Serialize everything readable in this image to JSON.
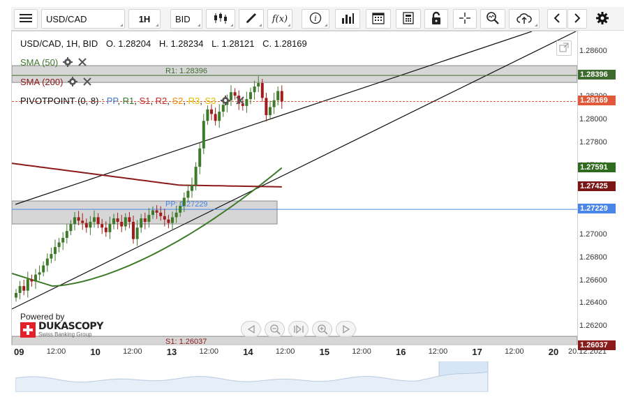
{
  "toolbar": {
    "symbol": "USD/CAD",
    "period": "1H",
    "side": "BID",
    "fx_label": "f(x)",
    "icons": [
      "menu-icon",
      "candlestick-icon",
      "pencil-icon",
      "function-icon",
      "info-icon",
      "bar-chart-icon",
      "calendar-icon",
      "calculator-icon",
      "lock-icon",
      "crosshair-icon",
      "zoom-icon",
      "upload-icon",
      "chevron-left-icon",
      "chevron-right-icon",
      "gear-icon"
    ]
  },
  "header": {
    "title": "USD/CAD, 1H, BID",
    "open": "O. 1.28204",
    "high": "H. 1.28234",
    "low": "L. 1.28121",
    "close": "C. 1.28169"
  },
  "indicators": {
    "sma50": "SMA (50)",
    "sma200": "SMA (200)",
    "pivot_name": "PIVOTPOINT (0, 8)",
    "pivot_parts": [
      {
        "text": "PP",
        "color": "#3a7bd5"
      },
      {
        "text": "R1",
        "color": "#2e7d32"
      },
      {
        "text": "S1",
        "color": "#c62828"
      },
      {
        "text": "R2",
        "color": "#c62828"
      },
      {
        "text": "S2",
        "color": "#ef8f00"
      },
      {
        "text": "R3",
        "color": "#e0c000"
      },
      {
        "text": "S3",
        "color": "#e0c000"
      }
    ]
  },
  "levels": {
    "r1": {
      "label": "R1: 1.28396",
      "value": 1.28396,
      "badge": "1.28396",
      "color": "#3d6b2d"
    },
    "pp": {
      "label": "PP: 1.27229",
      "value": 1.27229,
      "badge": "1.27229",
      "color": "#4a86e8"
    },
    "s1": {
      "label": "S1: 1.26037",
      "value": 1.26037,
      "badge": "1.26037",
      "color": "#8b1a1a"
    }
  },
  "price_badges": {
    "current": {
      "text": "1.28169",
      "value": 1.28169,
      "color": "#e05a3a"
    },
    "sma50": {
      "text": "1.27591",
      "value": 1.27591,
      "color": "#2f6b1f"
    },
    "sma200": {
      "text": "1.27425",
      "value": 1.27425,
      "color": "#7a1616"
    }
  },
  "branding": {
    "powered_by": "Powered by",
    "name": "DUKASCOPY",
    "tagline": "Swiss Banking Group"
  },
  "chart_data": {
    "type": "candlestick",
    "symbol": "USD/CAD",
    "timeframe": "1H",
    "y_ticks": [
      1.262,
      1.264,
      1.266,
      1.268,
      1.27,
      1.272,
      1.274,
      1.276,
      1.278,
      1.28,
      1.282,
      1.284,
      1.286
    ],
    "y_tick_labels": [
      "1.26200",
      "1.26400",
      "1.26600",
      "1.26800",
      "1.27000",
      "1.27200",
      "1.27400",
      "1.27600",
      "1.27800",
      "1.28000",
      "1.28200",
      "1.28400",
      "1.28600"
    ],
    "ylim": [
      1.2605,
      1.2878
    ],
    "x_tick_labels": [
      {
        "text": "09",
        "day": true
      },
      {
        "text": "12:00",
        "day": false
      },
      {
        "text": "10",
        "day": true
      },
      {
        "text": "12:00",
        "day": false
      },
      {
        "text": "13",
        "day": true
      },
      {
        "text": "12:00",
        "day": false
      },
      {
        "text": "14",
        "day": true
      },
      {
        "text": "12:00",
        "day": false
      },
      {
        "text": "15",
        "day": true
      },
      {
        "text": "12:00",
        "day": false
      },
      {
        "text": "16",
        "day": true
      },
      {
        "text": "12:00",
        "day": false
      },
      {
        "text": "17",
        "day": true
      },
      {
        "text": "12:00",
        "day": false
      },
      {
        "text": "20",
        "day": true
      },
      {
        "text": "20.12.2021",
        "day": false
      }
    ],
    "closes": [
      1.265,
      1.2656,
      1.2652,
      1.2662,
      1.266,
      1.2666,
      1.2668,
      1.2674,
      1.268,
      1.2684,
      1.269,
      1.2694,
      1.2698,
      1.2704,
      1.271,
      1.2716,
      1.2713,
      1.2711,
      1.2707,
      1.2712,
      1.2716,
      1.271,
      1.2707,
      1.2703,
      1.271,
      1.2715,
      1.2712,
      1.2708,
      1.2716,
      1.2712,
      1.2697,
      1.2707,
      1.2715,
      1.2712,
      1.2718,
      1.2722,
      1.272,
      1.2717,
      1.2714,
      1.2711,
      1.2716,
      1.272,
      1.2726,
      1.2733,
      1.2739,
      1.2744,
      1.276,
      1.2776,
      1.28,
      1.281,
      1.2806,
      1.28,
      1.2808,
      1.2814,
      1.2818,
      1.2825,
      1.2822,
      1.2815,
      1.2813,
      1.2819,
      1.2825,
      1.283,
      1.2833,
      1.282,
      1.2805,
      1.2812,
      1.2818,
      1.2826,
      1.2817
    ],
    "sma50": {
      "name": "SMA (50)",
      "start": 1.2667,
      "min": 1.2656,
      "end": 1.27591,
      "color": "#3d7a2a"
    },
    "sma200": {
      "name": "SMA (200)",
      "start": 1.2763,
      "min": 1.2744,
      "end": 1.27425,
      "color": "#8b1a1a"
    },
    "grid": false
  }
}
